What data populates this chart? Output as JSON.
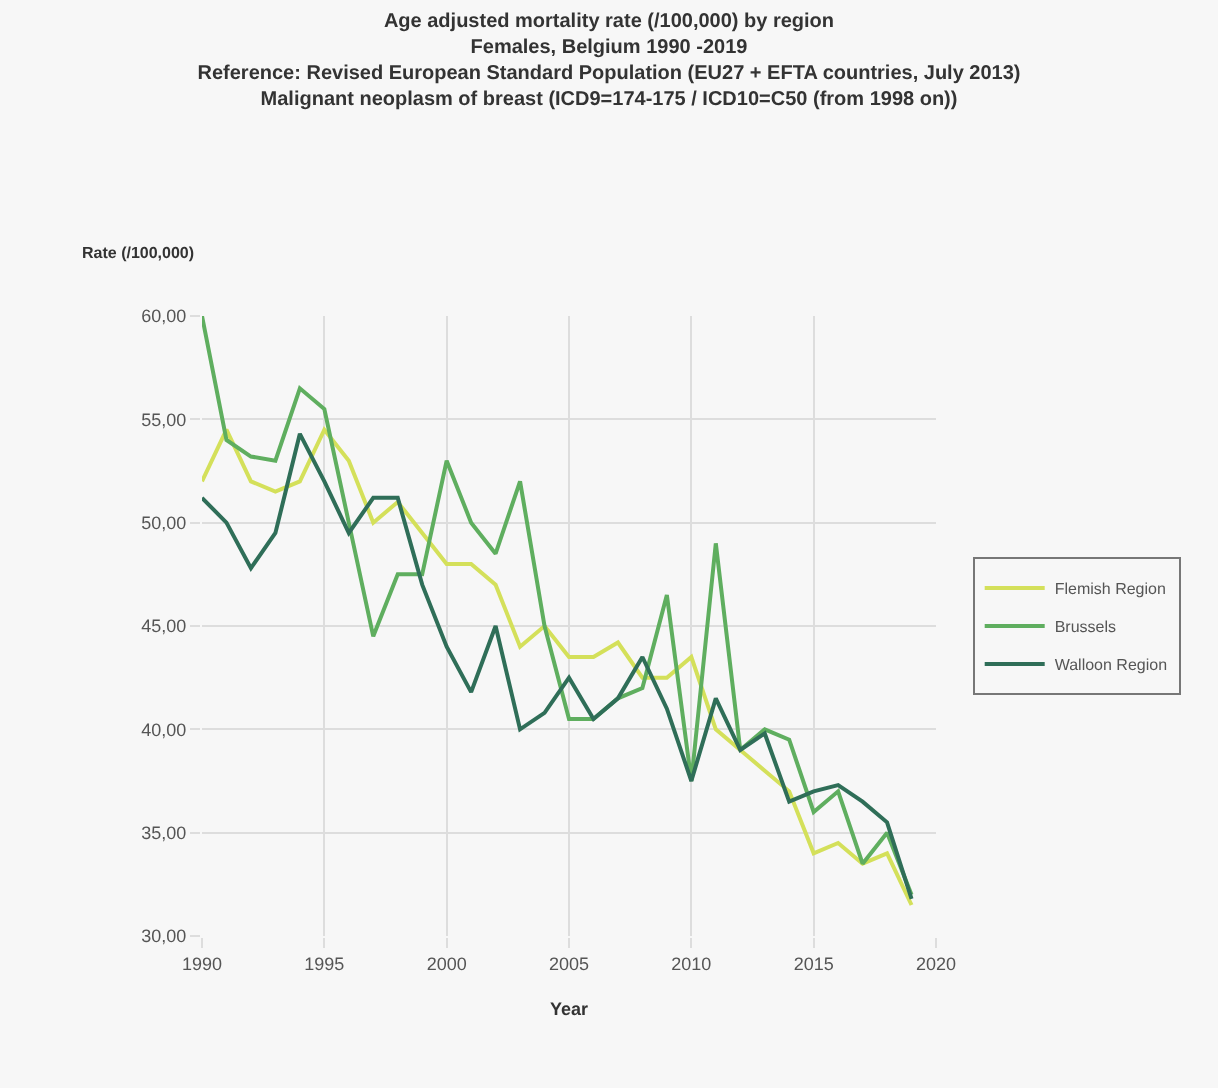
{
  "chart_data": {
    "type": "line",
    "title": "Age adjusted mortality rate (/100,000) by region\nFemales, Belgium 1990 -2019\nReference: Revised European Standard Population (EU27 + EFTA countries, July 2013)\nMalignant neoplasm of breast (ICD9=174-175 / ICD10=C50 (from 1998 on))",
    "xlabel": "Year",
    "ylabel": "Rate (/100,000)",
    "x": [
      1990,
      1991,
      1992,
      1993,
      1994,
      1995,
      1996,
      1997,
      1998,
      1999,
      2000,
      2001,
      2002,
      2003,
      2004,
      2005,
      2006,
      2007,
      2008,
      2009,
      2010,
      2011,
      2012,
      2013,
      2014,
      2015,
      2016,
      2017,
      2018,
      2019
    ],
    "series": [
      {
        "name": "Flemish Region",
        "color": "#d4e05a",
        "values": [
          52,
          54.5,
          52,
          51.5,
          52,
          54.5,
          53,
          50,
          51,
          49.5,
          48,
          48,
          47,
          44,
          45,
          43.5,
          43.5,
          44.2,
          42.5,
          42.5,
          43.5,
          40,
          39,
          38,
          37,
          34,
          34.5,
          33.5,
          34,
          31.5
        ]
      },
      {
        "name": "Brussels",
        "color": "#5fae5f",
        "values": [
          60,
          54,
          53.2,
          53,
          56.5,
          55.5,
          50,
          44.5,
          47.5,
          47.5,
          53,
          50,
          48.5,
          52,
          45,
          40.5,
          40.5,
          41.5,
          42,
          46.5,
          37.5,
          49,
          39,
          40,
          39.5,
          36,
          37,
          33.5,
          35,
          32
        ]
      },
      {
        "name": "Walloon Region",
        "color": "#2f6e58",
        "values": [
          51.2,
          50,
          47.8,
          49.5,
          54.3,
          52,
          49.5,
          51.2,
          51.2,
          47,
          44,
          41.8,
          45,
          40,
          40.8,
          42.5,
          40.5,
          41.5,
          43.5,
          41,
          37.5,
          41.5,
          39,
          39.8,
          36.5,
          37,
          37.3,
          36.5,
          35.5,
          31.8
        ]
      }
    ],
    "xlim": [
      1990,
      2020
    ],
    "xticks": [
      1990,
      1995,
      2000,
      2005,
      2010,
      2015,
      2020
    ],
    "ylim": [
      30,
      60
    ],
    "yticks": [
      {
        "value": 30,
        "label": "30,00"
      },
      {
        "value": 35,
        "label": "35,00"
      },
      {
        "value": 40,
        "label": "40,00"
      },
      {
        "value": 45,
        "label": "45,00"
      },
      {
        "value": 50,
        "label": "50,00"
      },
      {
        "value": 55,
        "label": "55,00"
      },
      {
        "value": 60,
        "label": "60,00"
      }
    ],
    "grid": true,
    "legend": "right",
    "marker": "none",
    "line_style": "solid"
  }
}
